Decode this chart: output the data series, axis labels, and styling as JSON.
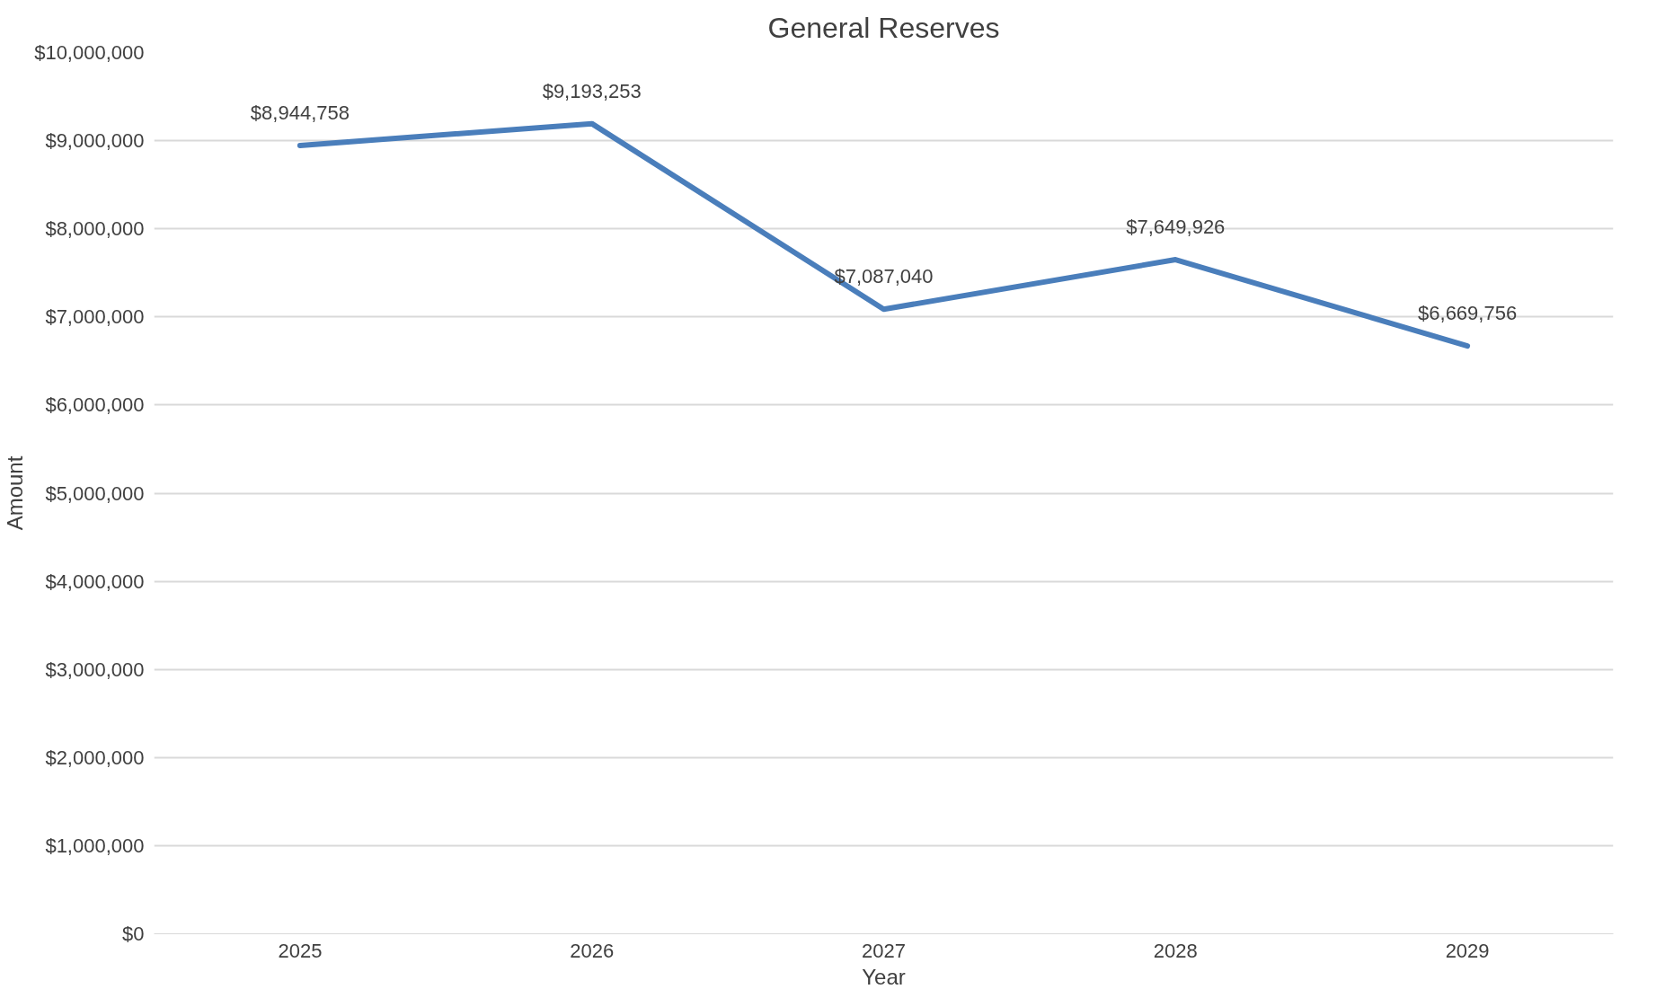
{
  "chart_data": {
    "type": "line",
    "title": "General Reserves",
    "xlabel": "Year",
    "ylabel": "Amount",
    "categories": [
      "2025",
      "2026",
      "2027",
      "2028",
      "2029"
    ],
    "series": [
      {
        "color": "#4a7ebb",
        "values": [
          8944758,
          9193253,
          7087040,
          7649926,
          6669756
        ],
        "value_labels": [
          "$8,944,758",
          "$9,193,253",
          "$7,087,040",
          "$7,649,926",
          "$6,669,756"
        ]
      }
    ],
    "ylim": [
      0,
      10000000
    ],
    "yticks": [
      {
        "value": 0,
        "label": "$0"
      },
      {
        "value": 1000000,
        "label": "$1,000,000"
      },
      {
        "value": 2000000,
        "label": "$2,000,000"
      },
      {
        "value": 3000000,
        "label": "$3,000,000"
      },
      {
        "value": 4000000,
        "label": "$4,000,000"
      },
      {
        "value": 5000000,
        "label": "$5,000,000"
      },
      {
        "value": 6000000,
        "label": "$6,000,000"
      },
      {
        "value": 7000000,
        "label": "$7,000,000"
      },
      {
        "value": 8000000,
        "label": "$8,000,000"
      },
      {
        "value": 9000000,
        "label": "$9,000,000"
      },
      {
        "value": 10000000,
        "label": "$10,000,000"
      }
    ],
    "grid": "y",
    "marker": "none",
    "line_style": "solid"
  }
}
